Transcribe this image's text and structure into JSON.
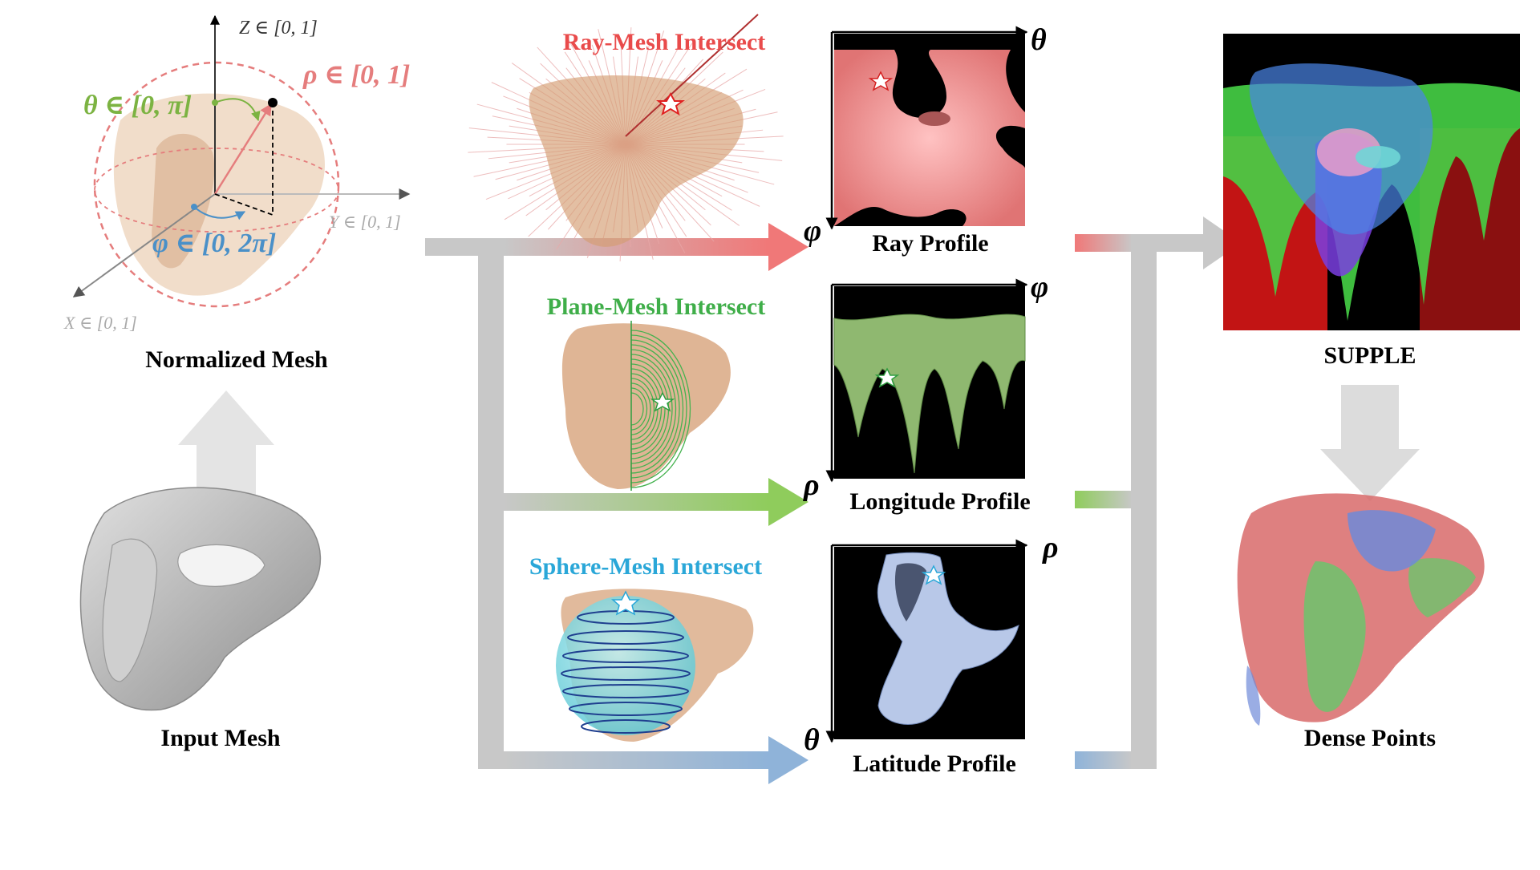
{
  "labels": {
    "normalized_mesh": "Normalized Mesh",
    "input_mesh": "Input Mesh",
    "supple": "SUPPLE",
    "dense_points": "Dense Points",
    "ray_intersect": "Ray-Mesh Intersect",
    "plane_intersect": "Plane-Mesh Intersect",
    "sphere_intersect": "Sphere-Mesh Intersect",
    "ray_profile": "Ray Profile",
    "longitude_profile": "Longitude Profile",
    "latitude_profile": "Latitude Profile"
  },
  "axes": {
    "z": "Z ∈ [0, 1]",
    "y": "Y ∈ [0, 1]",
    "x": "X ∈ [0, 1]",
    "rho": "ρ ∈ [0, 1]",
    "theta": "θ ∈ [0, π]",
    "phi": "φ ∈ [0, 2π]"
  },
  "profile_axes": {
    "ray_h": "θ",
    "ray_v": "φ",
    "lon_h": "φ",
    "lon_v": "ρ",
    "lat_h": "ρ",
    "lat_v": "θ"
  },
  "colors": {
    "ray": "#e94b4b",
    "plane": "#3fae49",
    "sphere": "#2aa7d8",
    "rho_pink": "#e57d7d",
    "theta_green": "#7cb342",
    "phi_blue": "#4a90c8",
    "connector_gray": "#c8c8c8"
  }
}
